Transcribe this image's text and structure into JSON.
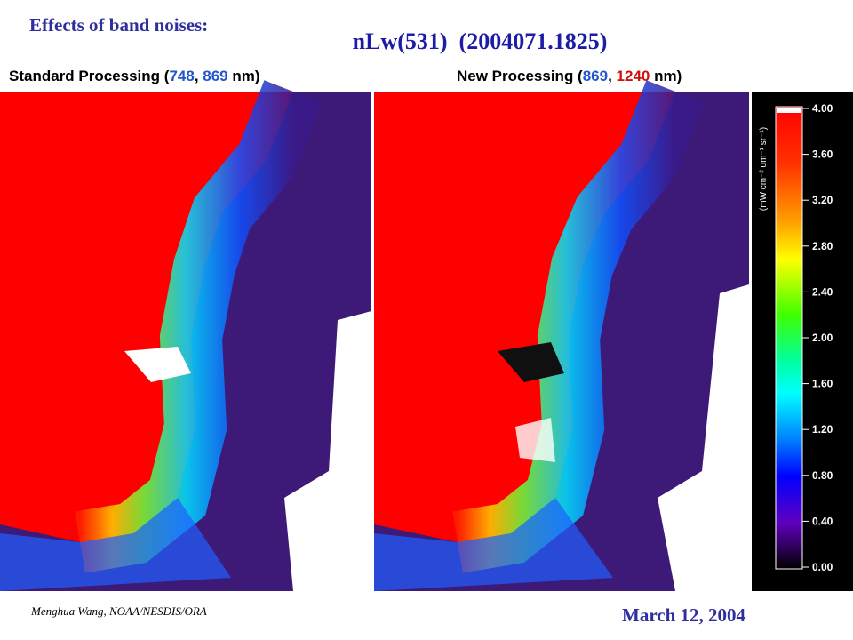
{
  "header": "Effects of band noises:",
  "title": "nLw(531)  (2004071.1825)",
  "left_caption": [
    "Standard Processing (",
    "748",
    ", ",
    "869",
    " nm)"
  ],
  "right_caption": [
    "New Processing (",
    "869",
    ", ",
    "1240",
    " nm)"
  ],
  "color_bar": {
    "unit": "(mW cm⁻² um⁻¹ sr⁻¹)",
    "ticks": [
      "4.00",
      "3.60",
      "3.20",
      "2.80",
      "2.40",
      "2.00",
      "1.60",
      "1.20",
      "0.80",
      "0.40",
      "0.00"
    ]
  },
  "footer": {
    "author": "Menghua Wang, NOAA/NESDIS/ORA",
    "date": "March 12, 2004"
  }
}
